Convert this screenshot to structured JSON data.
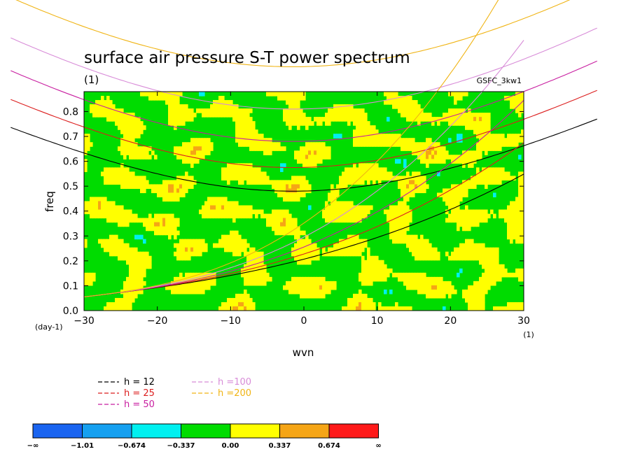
{
  "chart_data": {
    "type": "heatmap",
    "title": "surface air pressure S-T power spectrum",
    "subtitle_left": "(1)",
    "subtitle_right": "GSFC_3kw1",
    "xlabel": "wvn",
    "xunit": "(1)",
    "ylabel": "freq",
    "yunit": "(day-1)",
    "xlim": [
      -30,
      30
    ],
    "ylim": [
      0,
      0.88
    ],
    "xticks": [
      -30,
      -20,
      -10,
      0,
      10,
      20,
      30
    ],
    "yticks": [
      0.0,
      0.1,
      0.2,
      0.3,
      0.4,
      0.5,
      0.6,
      0.7,
      0.8
    ],
    "xtick_labels": [
      "−30",
      "−20",
      "−10",
      "0",
      "10",
      "20",
      "30"
    ],
    "ytick_labels": [
      "0.0",
      "0.1",
      "0.2",
      "0.3",
      "0.4",
      "0.5",
      "0.6",
      "0.7",
      "0.8"
    ],
    "contour_levels": [
      -1.01,
      -0.674,
      -0.337,
      0.0,
      0.337,
      0.674
    ],
    "colorbar": {
      "colors": [
        "#1a64f0",
        "#16a0f0",
        "#00f0f0",
        "#00dc00",
        "#ffff00",
        "#f5a516",
        "#ff1a1a"
      ],
      "labels": [
        "−∞",
        "−1.01",
        "−0.674",
        "−0.337",
        "0.00",
        "0.337",
        "0.674",
        "∞"
      ]
    },
    "dispersion_curves": [
      {
        "name": "h = 12",
        "color": "#000000",
        "kelvin_speed": 10.8,
        "min_freq_wave": 0.48,
        "min_at_wvn": -1.5
      },
      {
        "name": "h = 25",
        "color": "#dc1e1e",
        "kelvin_speed": 15.6,
        "min_freq_wave": 0.575,
        "min_at_wvn": -1.5
      },
      {
        "name": "h = 50",
        "color": "#c81ea0",
        "kelvin_speed": 22.1,
        "min_freq_wave": 0.68,
        "min_at_wvn": -1.5
      },
      {
        "name": "h =100",
        "color": "#d88cd8",
        "kelvin_speed": 31.3,
        "min_freq_wave": 0.81,
        "min_at_wvn": -1.5
      },
      {
        "name": "h =200",
        "color": "#f0b414",
        "kelvin_speed": 44.3,
        "min_freq_wave": 0.98,
        "min_at_wvn": -1.5
      }
    ]
  }
}
